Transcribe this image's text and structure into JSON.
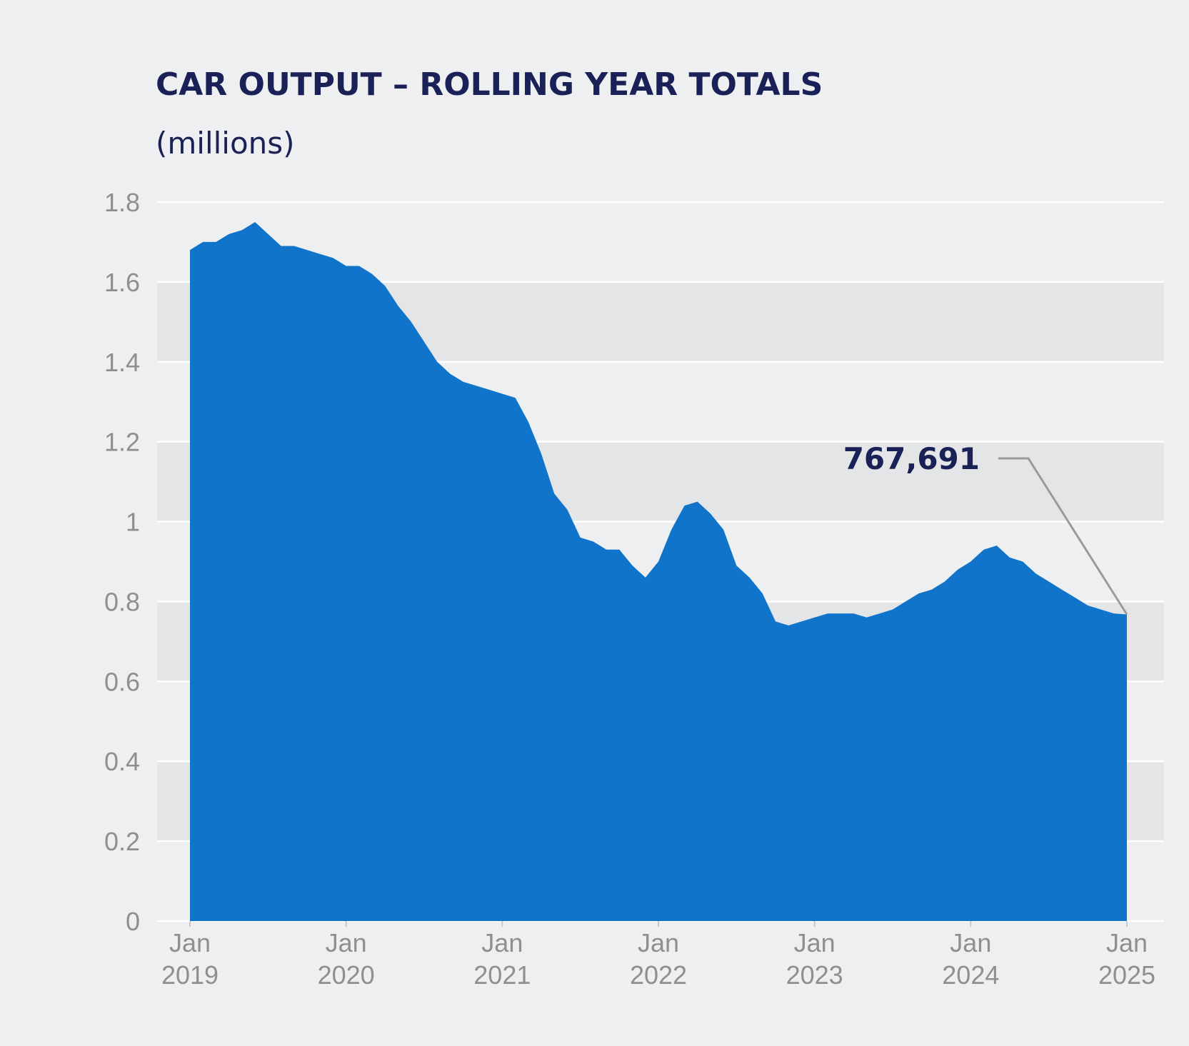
{
  "chart_data": {
    "type": "area",
    "title": "CAR OUTPUT – ROLLING YEAR TOTALS",
    "subtitle": "(millions)",
    "xlabel": "",
    "ylabel": "",
    "ylim": [
      0,
      1.8
    ],
    "yticks": [
      "0",
      "0.2",
      "0.4",
      "0.6",
      "0.8",
      "1",
      "1.2",
      "1.4",
      "1.6",
      "1.8"
    ],
    "xticks": [
      {
        "month": "Jan",
        "year": "2019"
      },
      {
        "month": "Jan",
        "year": "2020"
      },
      {
        "month": "Jan",
        "year": "2021"
      },
      {
        "month": "Jan",
        "year": "2022"
      },
      {
        "month": "Jan",
        "year": "2023"
      },
      {
        "month": "Jan",
        "year": "2024"
      },
      {
        "month": "Jan",
        "year": "2025"
      }
    ],
    "grid": true,
    "area_color": "#1174cb",
    "series": [
      {
        "x": [
          "2019-01",
          "2019-02",
          "2019-03",
          "2019-04",
          "2019-05",
          "2019-06",
          "2019-07",
          "2019-08",
          "2019-09",
          "2019-10",
          "2019-11",
          "2019-12",
          "2020-01",
          "2020-02",
          "2020-03",
          "2020-04",
          "2020-05",
          "2020-06",
          "2020-07",
          "2020-08",
          "2020-09",
          "2020-10",
          "2020-11",
          "2020-12",
          "2021-01",
          "2021-02",
          "2021-03",
          "2021-04",
          "2021-05",
          "2021-06",
          "2021-07",
          "2021-08",
          "2021-09",
          "2021-10",
          "2021-11",
          "2021-12",
          "2022-01",
          "2022-02",
          "2022-03",
          "2022-04",
          "2022-05",
          "2022-06",
          "2022-07",
          "2022-08",
          "2022-09",
          "2022-10",
          "2022-11",
          "2022-12",
          "2023-01",
          "2023-02",
          "2023-03",
          "2023-04",
          "2023-05",
          "2023-06",
          "2023-07",
          "2023-08",
          "2023-09",
          "2023-10",
          "2023-11",
          "2023-12",
          "2024-01",
          "2024-02",
          "2024-03",
          "2024-04",
          "2024-05",
          "2024-06",
          "2024-07",
          "2024-08",
          "2024-09",
          "2024-10",
          "2024-11",
          "2024-12",
          "2025-01"
        ],
        "values": [
          1.68,
          1.7,
          1.7,
          1.72,
          1.73,
          1.75,
          1.72,
          1.69,
          1.69,
          1.68,
          1.67,
          1.66,
          1.64,
          1.64,
          1.62,
          1.59,
          1.54,
          1.5,
          1.45,
          1.4,
          1.37,
          1.35,
          1.34,
          1.33,
          1.32,
          1.31,
          1.25,
          1.17,
          1.07,
          1.03,
          0.96,
          0.95,
          0.93,
          0.93,
          0.89,
          0.86,
          0.9,
          0.98,
          1.04,
          1.05,
          1.02,
          0.98,
          0.89,
          0.86,
          0.82,
          0.75,
          0.74,
          0.75,
          0.76,
          0.77,
          0.77,
          0.77,
          0.76,
          0.77,
          0.78,
          0.8,
          0.82,
          0.83,
          0.85,
          0.88,
          0.9,
          0.93,
          0.94,
          0.91,
          0.9,
          0.87,
          0.85,
          0.83,
          0.81,
          0.79,
          0.78,
          0.77,
          0.767691
        ]
      }
    ],
    "annotations": [
      {
        "text": "767,691",
        "x": "2025-01",
        "y": 0.767691
      }
    ]
  }
}
